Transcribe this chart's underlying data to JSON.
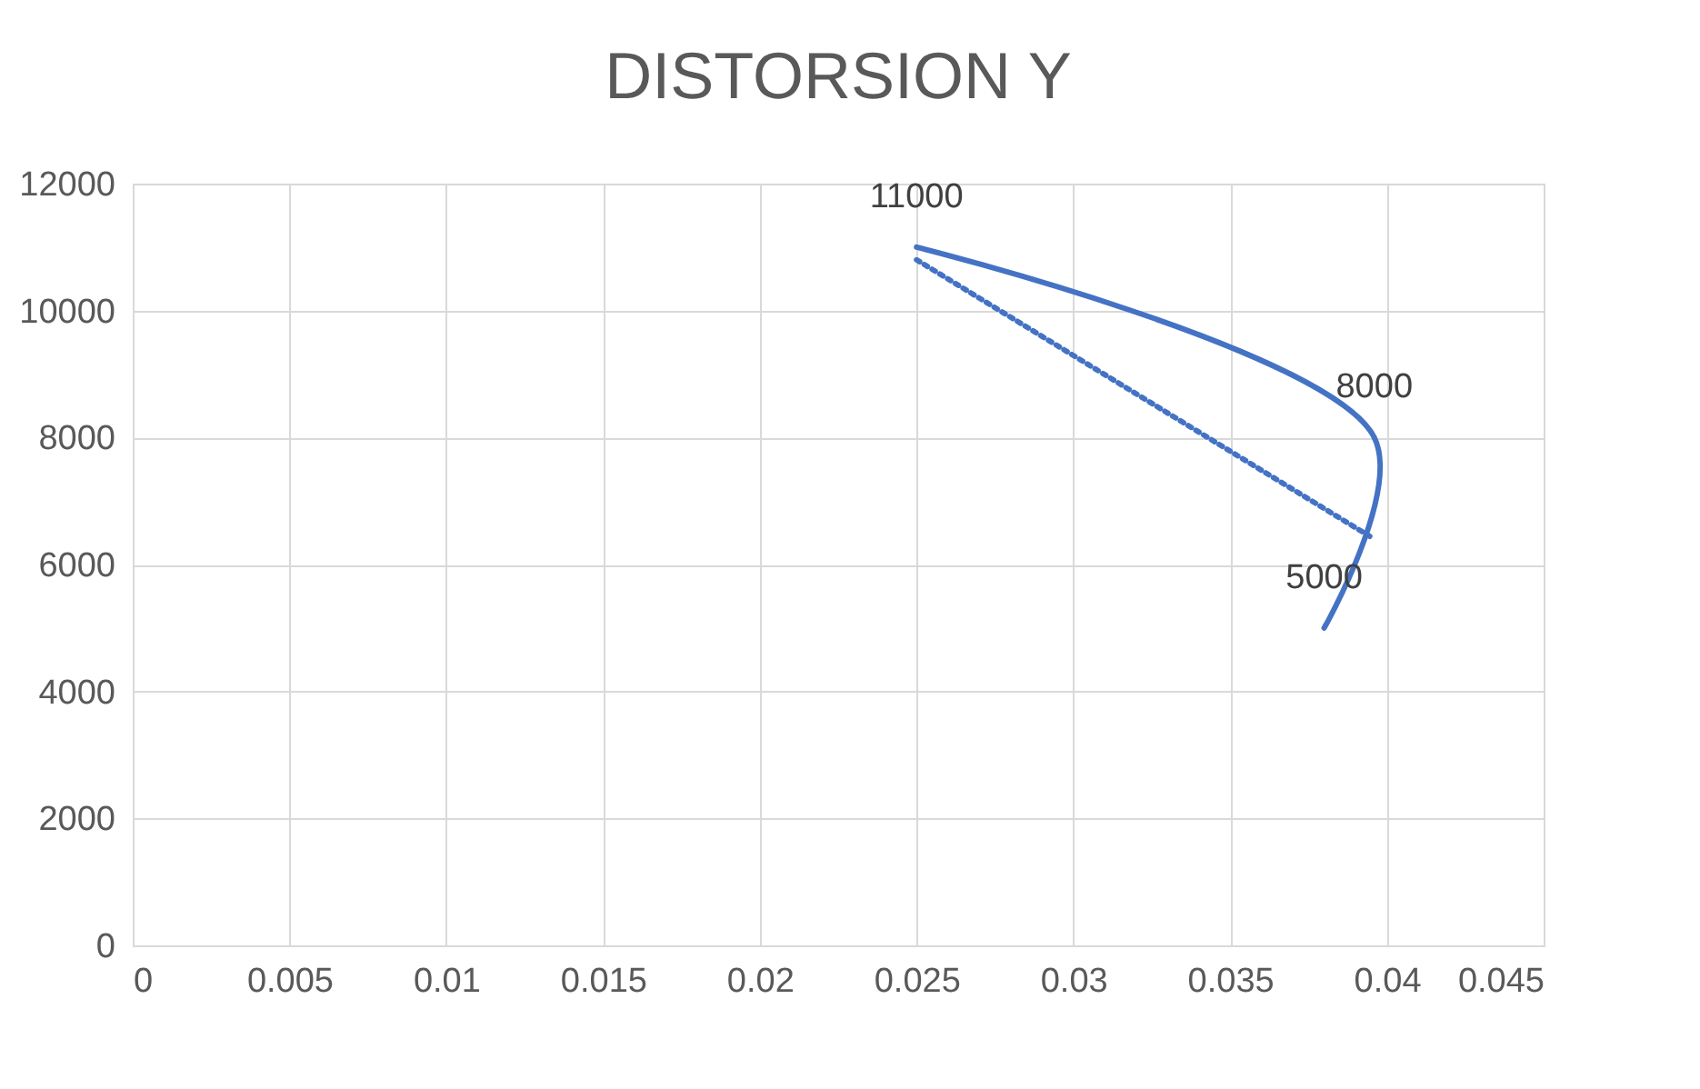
{
  "chart_data": {
    "type": "line",
    "title": "DISTORSION Y",
    "series": [
      {
        "color": "#4472c4",
        "x": [
          0.025,
          0.0396,
          0.038
        ],
        "values": [
          11000,
          8000,
          5000
        ],
        "line_style": "solid",
        "data_labels": true
      },
      {
        "type": "line",
        "color": "#4472c4",
        "x": [
          0.025,
          0.0396
        ],
        "values": [
          10800,
          6400
        ],
        "line_style": "dotted"
      }
    ],
    "xlim": [
      0,
      0.045
    ],
    "xticks": [
      0,
      0.005,
      0.01,
      0.015,
      0.02,
      0.025,
      0.03,
      0.035,
      0.04,
      0.045
    ],
    "ylim": [
      0,
      12000
    ],
    "yticks": [
      0,
      2000,
      4000,
      6000,
      8000,
      10000,
      12000
    ],
    "grid": true,
    "marker": "none"
  }
}
